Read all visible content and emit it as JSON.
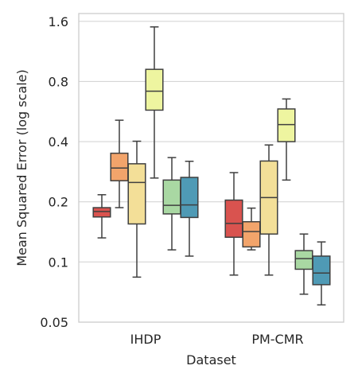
{
  "chart_data": {
    "type": "box",
    "xlabel": "Dataset",
    "ylabel": "Mean Squared Error (log scale)",
    "yscale": "log",
    "ylim": [
      0.05,
      1.75
    ],
    "yticks": [
      {
        "value": 0.05,
        "label": "0.05"
      },
      {
        "value": 0.1,
        "label": "0.1"
      },
      {
        "value": 0.2,
        "label": "0.2"
      },
      {
        "value": 0.4,
        "label": "0.4"
      },
      {
        "value": 0.8,
        "label": "0.8"
      },
      {
        "value": 1.6,
        "label": "1.6"
      }
    ],
    "grid": "horizontal",
    "legend": "none",
    "categories": [
      "IHDP",
      "PM-CMR"
    ],
    "series_colors": [
      "#d9534f",
      "#f2a46b",
      "#f3df98",
      "#eef5a0",
      "#a9d8a3",
      "#4f9ab5"
    ],
    "boxes": [
      [
        {
          "whisker_low": 0.132,
          "q1": 0.168,
          "median": 0.179,
          "q3": 0.187,
          "whisker_high": 0.217
        },
        {
          "whisker_low": 0.187,
          "q1": 0.255,
          "median": 0.295,
          "q3": 0.35,
          "whisker_high": 0.512
        },
        {
          "whisker_low": 0.084,
          "q1": 0.155,
          "median": 0.25,
          "q3": 0.31,
          "whisker_high": 0.402
        },
        {
          "whisker_low": 0.263,
          "q1": 0.575,
          "median": 0.715,
          "q3": 0.92,
          "whisker_high": 1.5
        },
        {
          "whisker_low": 0.115,
          "q1": 0.174,
          "median": 0.192,
          "q3": 0.257,
          "whisker_high": 0.333
        },
        {
          "whisker_low": 0.107,
          "q1": 0.167,
          "median": 0.193,
          "q3": 0.265,
          "whisker_high": 0.319
        }
      ],
      [
        {
          "whisker_low": 0.086,
          "q1": 0.133,
          "median": 0.156,
          "q3": 0.204,
          "whisker_high": 0.28
        },
        {
          "whisker_low": 0.115,
          "q1": 0.119,
          "median": 0.142,
          "q3": 0.159,
          "whisker_high": 0.186
        },
        {
          "whisker_low": 0.086,
          "q1": 0.138,
          "median": 0.21,
          "q3": 0.32,
          "whisker_high": 0.385
        },
        {
          "whisker_low": 0.257,
          "q1": 0.4,
          "median": 0.487,
          "q3": 0.583,
          "whisker_high": 0.654
        },
        {
          "whisker_low": 0.069,
          "q1": 0.092,
          "median": 0.104,
          "q3": 0.114,
          "whisker_high": 0.138
        },
        {
          "whisker_low": 0.061,
          "q1": 0.077,
          "median": 0.088,
          "q3": 0.107,
          "whisker_high": 0.126
        }
      ]
    ]
  }
}
